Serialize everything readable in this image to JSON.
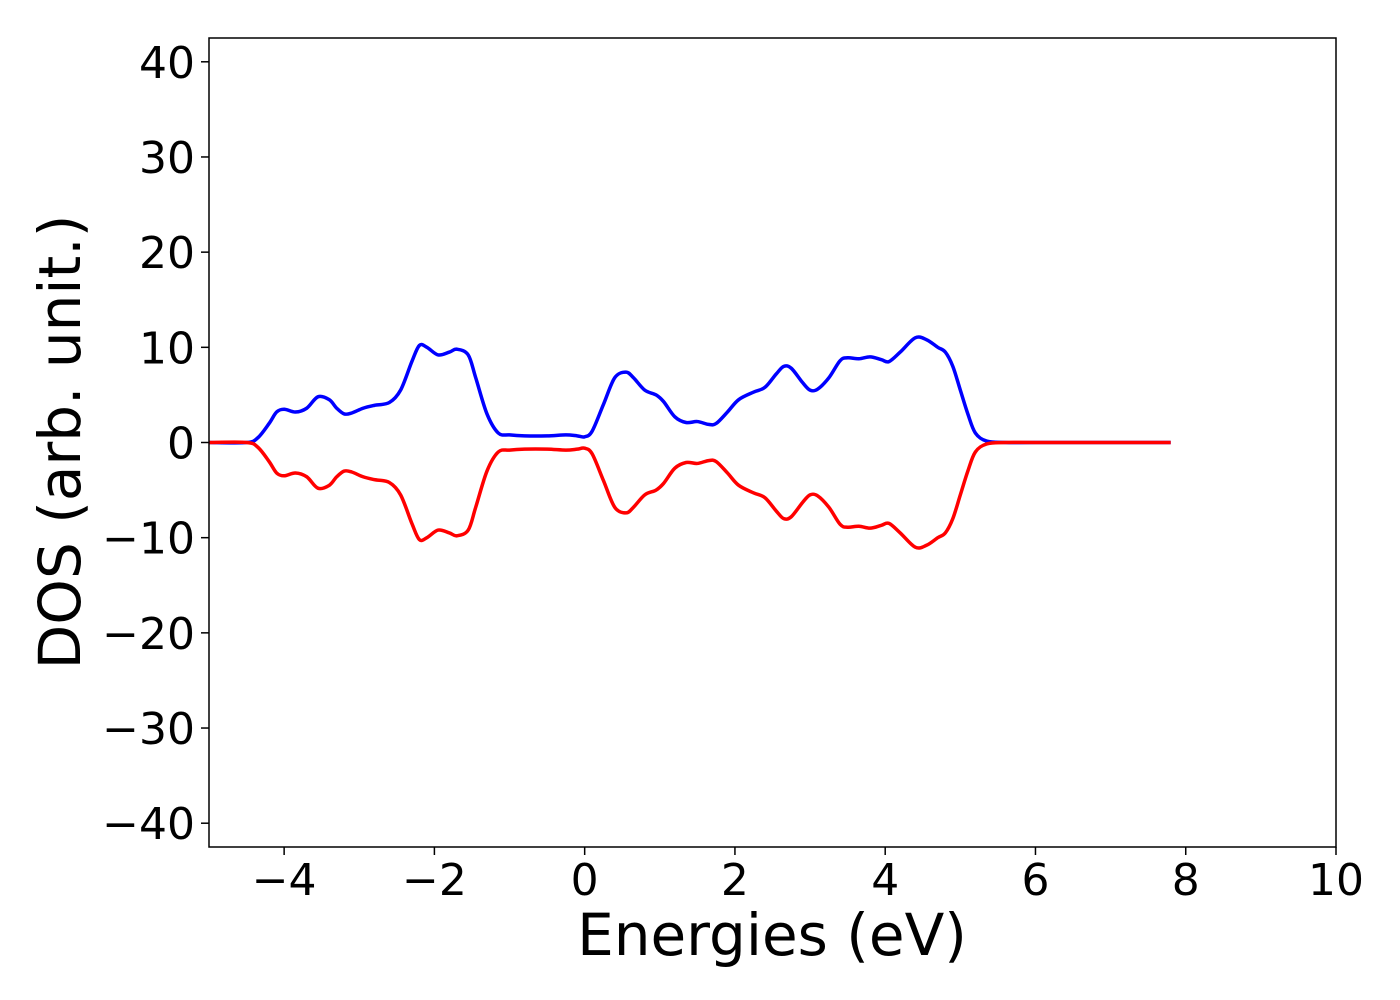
{
  "chart_data": {
    "type": "line",
    "title": "",
    "xlabel": "Energies (eV)",
    "ylabel": "DOS (arb. unit.)",
    "xlim": [
      -5,
      10
    ],
    "ylim": [
      -42.5,
      42.5
    ],
    "x_ticks": [
      -4,
      -2,
      0,
      2,
      4,
      6,
      8,
      10
    ],
    "y_ticks": [
      -40,
      -30,
      -20,
      -10,
      0,
      10,
      20,
      30,
      40
    ],
    "x_tick_labels": [
      "−4",
      "−2",
      "0",
      "2",
      "4",
      "6",
      "8",
      "10"
    ],
    "y_tick_labels": [
      "−40",
      "−30",
      "−20",
      "−10",
      "0",
      "10",
      "20",
      "30",
      "40"
    ],
    "grid": false,
    "legend": "none",
    "series": [
      {
        "color": "#0000ff",
        "x": [
          -5.0,
          -4.5,
          -4.35,
          -4.2,
          -4.1,
          -4.0,
          -3.85,
          -3.7,
          -3.55,
          -3.4,
          -3.3,
          -3.2,
          -3.1,
          -2.95,
          -2.8,
          -2.6,
          -2.45,
          -2.3,
          -2.2,
          -2.1,
          -1.95,
          -1.8,
          -1.7,
          -1.55,
          -1.45,
          -1.3,
          -1.15,
          -1.0,
          -0.8,
          -0.5,
          -0.25,
          -0.1,
          0.0,
          0.1,
          0.25,
          0.4,
          0.55,
          0.65,
          0.8,
          0.95,
          1.05,
          1.2,
          1.35,
          1.5,
          1.65,
          1.75,
          1.9,
          2.05,
          2.25,
          2.4,
          2.55,
          2.65,
          2.75,
          2.9,
          3.0,
          3.1,
          3.25,
          3.4,
          3.5,
          3.65,
          3.8,
          3.95,
          4.05,
          4.2,
          4.4,
          4.55,
          4.7,
          4.8,
          4.9,
          5.0,
          5.1,
          5.2,
          5.35,
          5.6,
          6.0,
          7.0,
          7.8
        ],
        "y": [
          0.0,
          0.0,
          0.5,
          2.0,
          3.2,
          3.5,
          3.2,
          3.6,
          4.8,
          4.5,
          3.6,
          3.0,
          3.1,
          3.6,
          3.9,
          4.2,
          5.5,
          8.5,
          10.2,
          10.0,
          9.2,
          9.5,
          9.8,
          9.2,
          6.8,
          3.0,
          1.0,
          0.8,
          0.7,
          0.7,
          0.8,
          0.7,
          0.6,
          1.2,
          4.0,
          6.8,
          7.4,
          6.8,
          5.5,
          5.0,
          4.3,
          2.7,
          2.1,
          2.2,
          1.9,
          2.0,
          3.2,
          4.5,
          5.3,
          5.8,
          7.2,
          8.0,
          7.8,
          6.3,
          5.5,
          5.6,
          6.8,
          8.6,
          8.9,
          8.8,
          9.0,
          8.7,
          8.5,
          9.5,
          11.0,
          10.8,
          10.0,
          9.5,
          8.0,
          5.5,
          3.0,
          1.0,
          0.15,
          0.0,
          0.0,
          0.0,
          0.0
        ]
      },
      {
        "color": "#ff0000",
        "x": [
          -5.0,
          -4.5,
          -4.35,
          -4.2,
          -4.1,
          -4.0,
          -3.85,
          -3.7,
          -3.55,
          -3.4,
          -3.3,
          -3.2,
          -3.1,
          -2.95,
          -2.8,
          -2.6,
          -2.45,
          -2.3,
          -2.2,
          -2.1,
          -1.95,
          -1.8,
          -1.7,
          -1.55,
          -1.45,
          -1.3,
          -1.15,
          -1.0,
          -0.8,
          -0.5,
          -0.25,
          -0.1,
          0.0,
          0.1,
          0.25,
          0.4,
          0.55,
          0.65,
          0.8,
          0.95,
          1.05,
          1.2,
          1.35,
          1.5,
          1.65,
          1.75,
          1.9,
          2.05,
          2.25,
          2.4,
          2.55,
          2.65,
          2.75,
          2.9,
          3.0,
          3.1,
          3.25,
          3.4,
          3.5,
          3.65,
          3.8,
          3.95,
          4.05,
          4.2,
          4.4,
          4.55,
          4.7,
          4.8,
          4.9,
          5.0,
          5.1,
          5.2,
          5.35,
          5.6,
          6.0,
          7.0,
          7.8
        ],
        "y": [
          0.0,
          0.0,
          -0.5,
          -2.0,
          -3.2,
          -3.5,
          -3.2,
          -3.6,
          -4.8,
          -4.5,
          -3.6,
          -3.0,
          -3.1,
          -3.6,
          -3.9,
          -4.2,
          -5.5,
          -8.5,
          -10.2,
          -10.0,
          -9.2,
          -9.5,
          -9.8,
          -9.2,
          -6.8,
          -3.0,
          -1.0,
          -0.8,
          -0.7,
          -0.7,
          -0.8,
          -0.7,
          -0.6,
          -1.2,
          -4.0,
          -6.8,
          -7.4,
          -6.8,
          -5.5,
          -5.0,
          -4.3,
          -2.7,
          -2.1,
          -2.2,
          -1.9,
          -2.0,
          -3.2,
          -4.5,
          -5.3,
          -5.8,
          -7.2,
          -8.0,
          -7.8,
          -6.3,
          -5.5,
          -5.6,
          -6.8,
          -8.6,
          -8.9,
          -8.8,
          -9.0,
          -8.7,
          -8.5,
          -9.5,
          -11.0,
          -10.8,
          -10.0,
          -9.5,
          -8.0,
          -5.5,
          -3.0,
          -1.0,
          -0.15,
          0.0,
          0.0,
          0.0,
          0.0
        ]
      }
    ]
  }
}
